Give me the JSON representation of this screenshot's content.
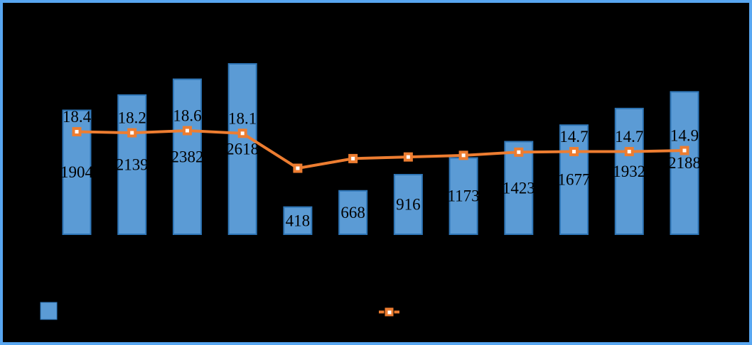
{
  "frame": {
    "background_color": "#000000",
    "border_color": "#58A6F0"
  },
  "chart_data": {
    "type": "bar",
    "combo_with_line": true,
    "title": "",
    "xlabel": "",
    "ylabel": "",
    "categories_visible": false,
    "axes_visible": false,
    "grid": false,
    "label_color": "#000000",
    "series": [
      {
        "name": "bar-series",
        "type": "bar",
        "color": "#5B9BD5",
        "border_color": "#2E75B6",
        "values": [
          1904,
          2139,
          2382,
          2618,
          418,
          668,
          916,
          1173,
          1423,
          1677,
          1932,
          2188
        ],
        "labels": [
          "1904",
          "2139",
          "2382",
          "2618",
          "418",
          "668",
          "916",
          "1173",
          "1423",
          "1677",
          "1932",
          "2188"
        ],
        "label_position": "center-of-bar"
      },
      {
        "name": "line-series",
        "type": "line",
        "color": "#ED7D31",
        "marker": "square-with-white-center",
        "values": [
          18.4,
          18.2,
          18.6,
          18.1,
          11.6,
          13.4,
          13.7,
          14.0,
          14.6,
          14.7,
          14.7,
          14.9
        ],
        "estimated": [
          false,
          false,
          false,
          false,
          true,
          true,
          true,
          true,
          true,
          false,
          false,
          false
        ],
        "labels": [
          "18.4",
          "18.2",
          "18.6",
          "18.1",
          "",
          "",
          "",
          "",
          "",
          "14.7",
          "14.7",
          "14.9"
        ],
        "label_position": "above-marker"
      }
    ],
    "primary_axis_range": [
      0,
      3000
    ],
    "legend_position": "bottom",
    "legend": {
      "items": [
        {
          "swatch": "bar-square",
          "color": "#5B9BD5",
          "label": ""
        },
        {
          "swatch": "line-with-marker",
          "color": "#ED7D31",
          "label": ""
        }
      ]
    }
  }
}
